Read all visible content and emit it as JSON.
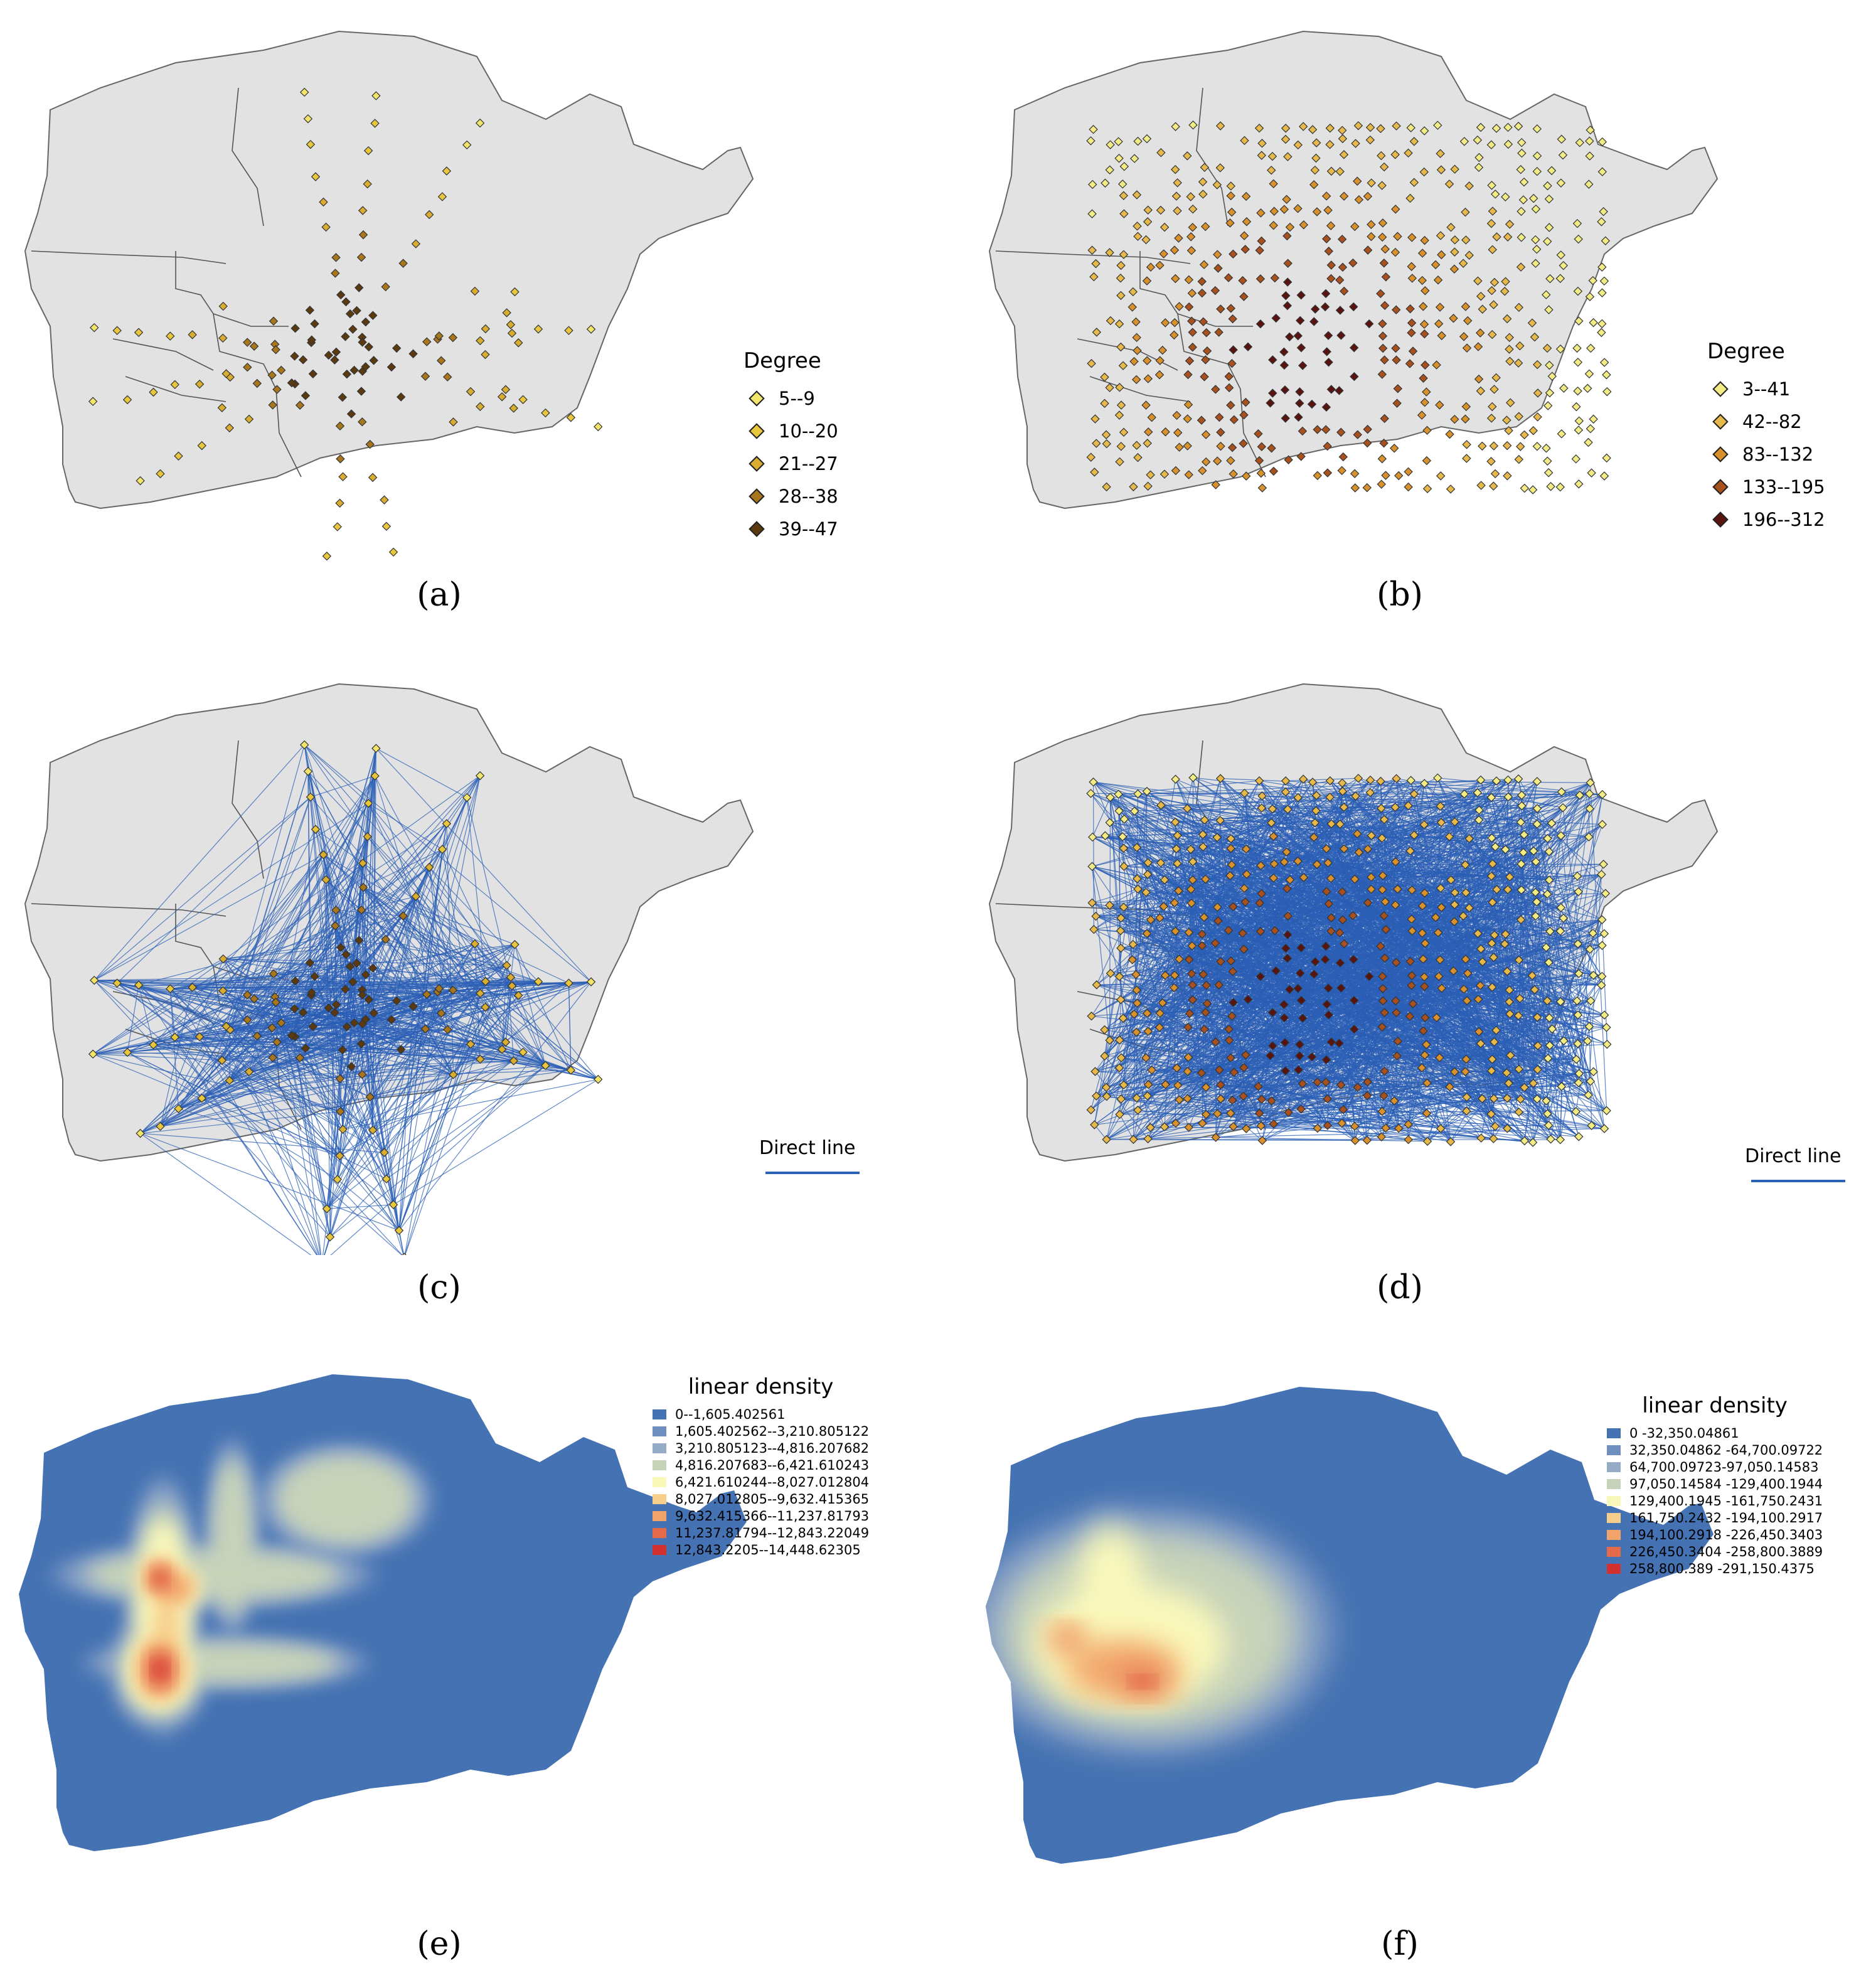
{
  "colors": {
    "map_fill": "#e2e2e2",
    "map_stroke": "#666666",
    "line": "#2b5fb5",
    "degree_ramp": [
      "#f4ec7d",
      "#e7c23d",
      "#cf8e24",
      "#9a4f18",
      "#4a1c0c"
    ]
  },
  "panels": {
    "a": {
      "caption": "(a)",
      "legend": {
        "title": "Degree",
        "classes": [
          {
            "label": "5--9",
            "color": "#f3e56a"
          },
          {
            "label": "10--20",
            "color": "#e9c73c"
          },
          {
            "label": "21--27",
            "color": "#d9ad30"
          },
          {
            "label": "28--38",
            "color": "#a8761c"
          },
          {
            "label": "39--47",
            "color": "#5b3a10"
          }
        ]
      }
    },
    "b": {
      "caption": "(b)",
      "legend": {
        "title": "Degree",
        "classes": [
          {
            "label": "3--41",
            "color": "#f3ec84"
          },
          {
            "label": "42--82",
            "color": "#e6b94a"
          },
          {
            "label": "83--132",
            "color": "#d9912c"
          },
          {
            "label": "133--195",
            "color": "#a8501e"
          },
          {
            "label": "196--312",
            "color": "#5a1410"
          }
        ]
      }
    },
    "c": {
      "caption": "(c)",
      "legend_label": "Direct line"
    },
    "d": {
      "caption": "(d)",
      "legend_label": "Direct line"
    },
    "e": {
      "caption": "(e)",
      "legend": {
        "title": "linear density",
        "classes": [
          {
            "label": "0--1,605.402561",
            "color": "#4472b2"
          },
          {
            "label": "1,605.402562--3,210.805122",
            "color": "#6e8fc0"
          },
          {
            "label": "3,210.805123--4,816.207682",
            "color": "#95abc6"
          },
          {
            "label": "4,816.207683--6,421.610243",
            "color": "#c7d3b9"
          },
          {
            "label": "6,421.610244--8,027.012804",
            "color": "#f9f8bb"
          },
          {
            "label": "8,027.012805--9,632.415365",
            "color": "#f7cf8c"
          },
          {
            "label": "9,632.415366--11,237.81793",
            "color": "#f1a36a"
          },
          {
            "label": "11,237.81794--12,843.22049",
            "color": "#e56a4b"
          },
          {
            "label": "12,843.2205--14,448.62305",
            "color": "#d22f2f"
          }
        ]
      }
    },
    "f": {
      "caption": "(f)",
      "legend": {
        "title": "linear density",
        "classes": [
          {
            "label": "0 -32,350.04861",
            "color": "#4472b2"
          },
          {
            "label": "32,350.04862 -64,700.09722",
            "color": "#6e8fc0"
          },
          {
            "label": "64,700.09723-97,050.14583",
            "color": "#95abc6"
          },
          {
            "label": "97,050.14584 -129,400.1944",
            "color": "#c7d3b9"
          },
          {
            "label": "129,400.1945 -161,750.2431",
            "color": "#f9f8bb"
          },
          {
            "label": "161,750.2432 -194,100.2917",
            "color": "#f7cf8c"
          },
          {
            "label": "194,100.2918 -226,450.3403",
            "color": "#f1a36a"
          },
          {
            "label": "226,450.3404 -258,800.3889",
            "color": "#e56a4b"
          },
          {
            "label": "258,800.389 -291,150.4375",
            "color": "#d22f2f"
          }
        ]
      }
    }
  }
}
